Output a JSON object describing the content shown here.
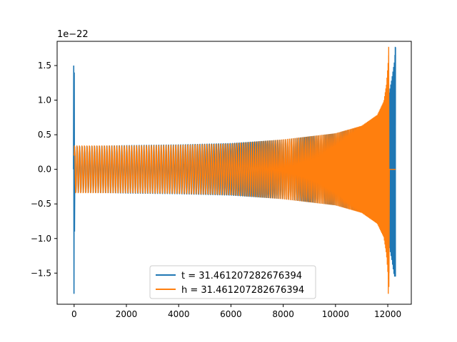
{
  "chart_data": {
    "type": "line",
    "title": "",
    "xlabel": "",
    "ylabel": "",
    "y_offset_label": "1e−22",
    "xlim": [
      -650,
      12900
    ],
    "ylim": [
      -1.95,
      1.85
    ],
    "x_ticks": [
      0,
      2000,
      4000,
      6000,
      8000,
      10000,
      12000
    ],
    "x_tick_labels": [
      "0",
      "2000",
      "4000",
      "6000",
      "8000",
      "10000",
      "12000"
    ],
    "y_ticks": [
      -1.5,
      -1.0,
      -0.5,
      0.0,
      0.5,
      1.0,
      1.5
    ],
    "y_tick_labels": [
      "−1.5",
      "−1.0",
      "−0.5",
      "0.0",
      "0.5",
      "1.0",
      "1.5"
    ],
    "grid": false,
    "legend": "lower-center",
    "series": [
      {
        "name": "t = 31.461207282676394",
        "color": "#1f77b4",
        "x_start": 0,
        "x_end_signal": 12300,
        "initial_spike": [
          1.5,
          -1.8
        ],
        "envelope": [
          [
            0,
            0.33
          ],
          [
            2000,
            0.35
          ],
          [
            4000,
            0.36
          ],
          [
            6000,
            0.38
          ],
          [
            8000,
            0.43
          ],
          [
            10000,
            0.52
          ],
          [
            11000,
            0.62
          ],
          [
            11600,
            0.75
          ],
          [
            11900,
            0.9
          ],
          [
            12050,
            1.1
          ],
          [
            12150,
            1.3
          ],
          [
            12250,
            1.55
          ],
          [
            12300,
            1.77
          ]
        ],
        "min_value": -1.55
      },
      {
        "name": "h = 31.461207282676394",
        "color": "#ff7f0e",
        "x_start": 0,
        "x_end_signal": 12050,
        "x_end": 12300,
        "envelope": [
          [
            0,
            0.35
          ],
          [
            2000,
            0.35
          ],
          [
            4000,
            0.36
          ],
          [
            6000,
            0.38
          ],
          [
            8000,
            0.44
          ],
          [
            10000,
            0.53
          ],
          [
            11000,
            0.64
          ],
          [
            11600,
            0.8
          ],
          [
            11850,
            1.0
          ],
          [
            11950,
            1.25
          ],
          [
            12000,
            1.5
          ],
          [
            12050,
            1.77
          ]
        ],
        "min_value": -1.8
      }
    ]
  }
}
